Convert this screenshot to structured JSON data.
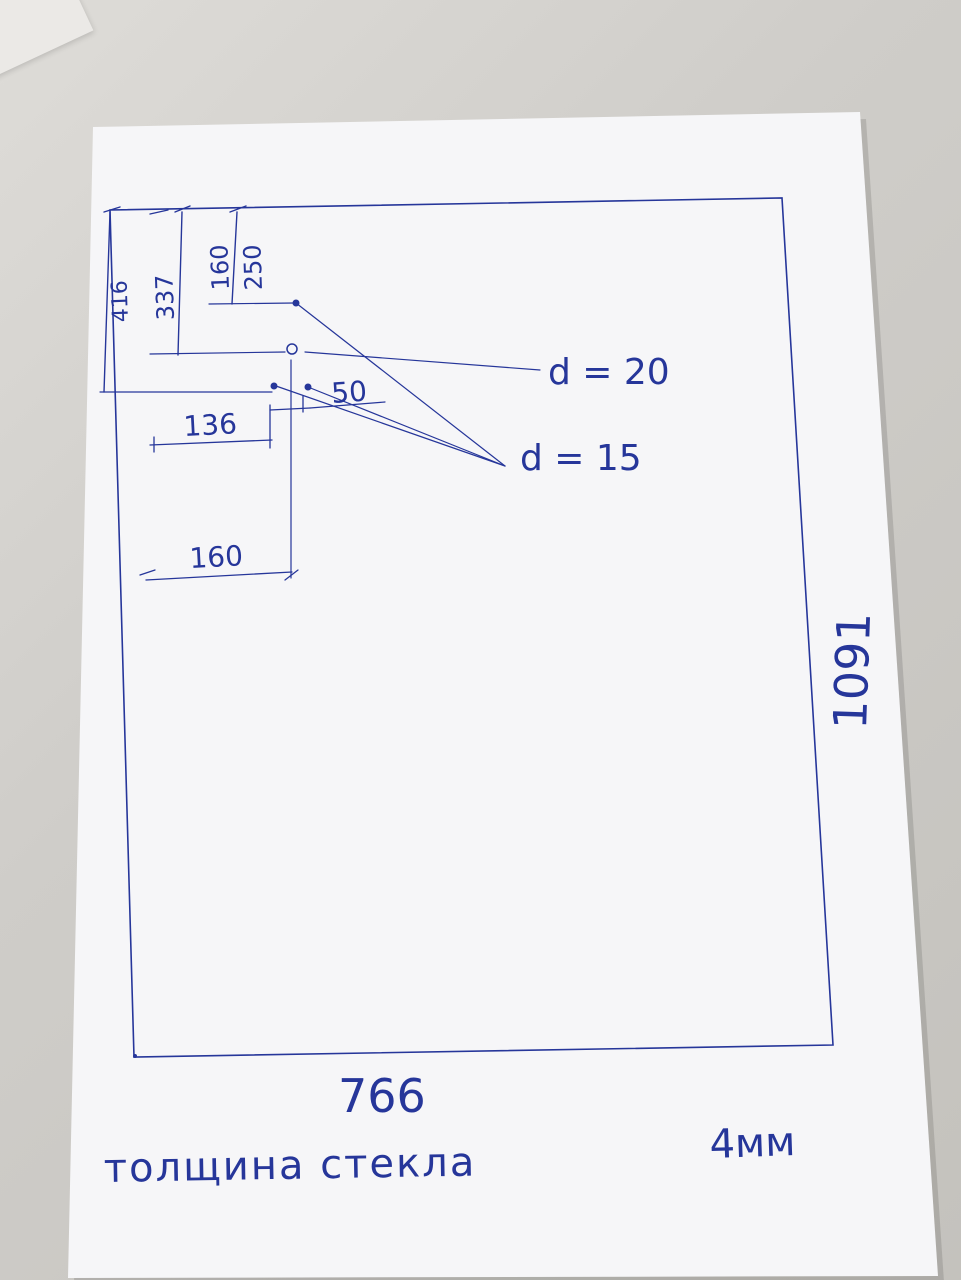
{
  "drawing": {
    "ink_color": "#26369a",
    "paper_color": "#f7f7f9",
    "dims": {
      "d416": "416",
      "d337": "337",
      "d160_top": "160",
      "d250": "250",
      "d136": "136",
      "d50": "50",
      "d160_bottom": "160",
      "width": "766",
      "height": "1091"
    },
    "hole_20": "d = 20",
    "hole_15": "d = 15",
    "note_text": "толщина стекла",
    "note_thickness": "4мм"
  }
}
